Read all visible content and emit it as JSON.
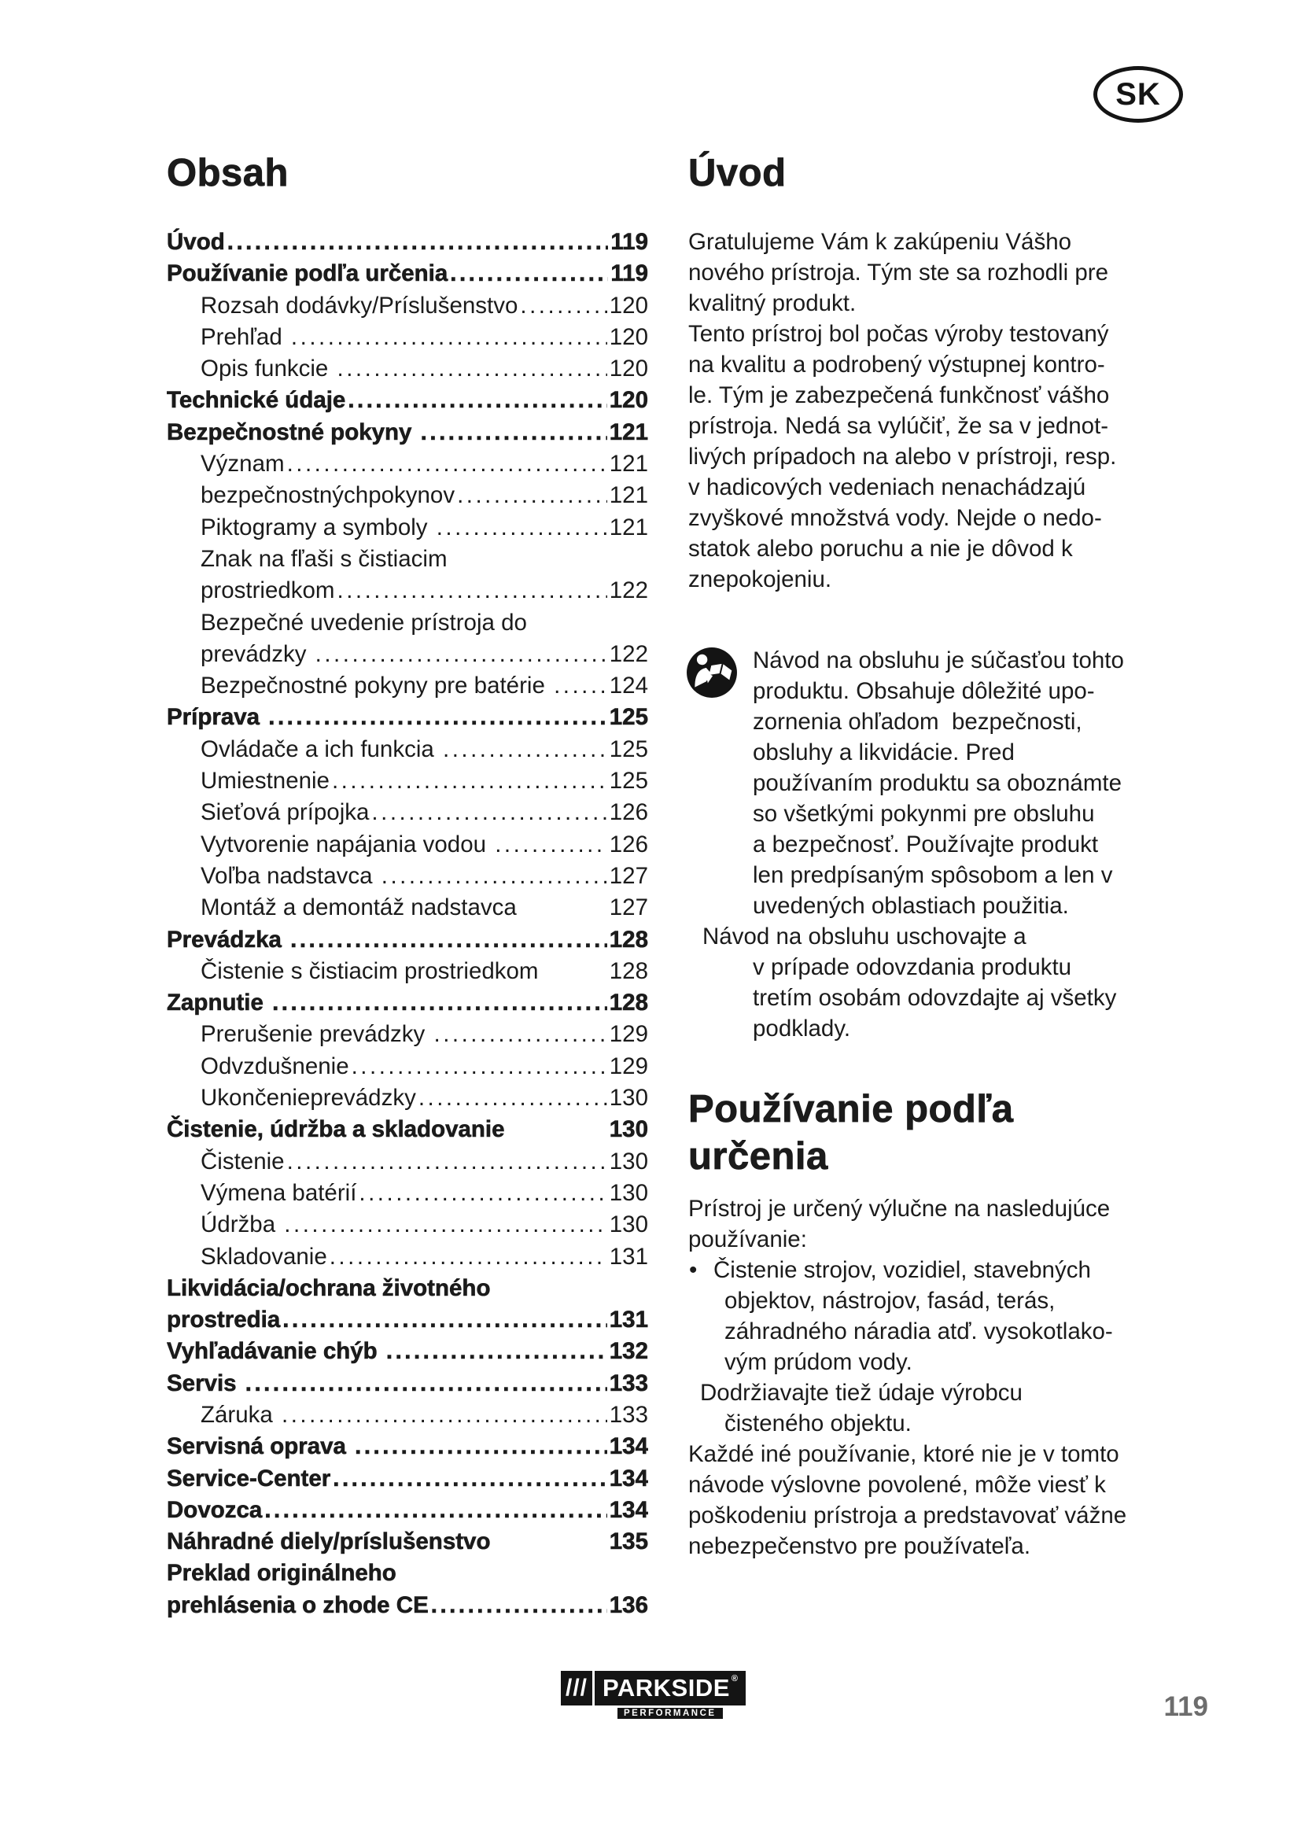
{
  "page": {
    "number": "119",
    "country_badge": "SK"
  },
  "colors": {
    "text": "#1b1b1b",
    "page_number_gray": "#6d6d6d",
    "logo_black": "#141414"
  },
  "toc": {
    "heading": "Obsah",
    "rows": [
      {
        "label": "Úvod",
        "page": "119",
        "bold": true,
        "indent": 0
      },
      {
        "label": "Používanie podľa určenia",
        "page": "119",
        "bold": true,
        "indent": 0
      },
      {
        "label": "Rozsah dodávky/Príslušenstvo",
        "page": "120",
        "bold": false,
        "indent": 1
      },
      {
        "label": "Prehľad ",
        "page": "120",
        "bold": false,
        "indent": 1
      },
      {
        "label": "Opis funkcie ",
        "page": "120",
        "bold": false,
        "indent": 1
      },
      {
        "label": "Technické údaje",
        "page": "120",
        "bold": true,
        "indent": 0
      },
      {
        "label": "Bezpečnostné pokyny ",
        "page": "121",
        "bold": true,
        "indent": 0
      },
      {
        "label": "Význam",
        "page": "121",
        "bold": false,
        "indent": 1
      },
      {
        "label": "bezpečnostnýchpokynov",
        "page": "121",
        "bold": false,
        "indent": 1
      },
      {
        "label": "Piktogramy a symboly ",
        "page": "121",
        "bold": false,
        "indent": 1
      },
      {
        "label": "Znak na fľaši s čistiacim",
        "page": "",
        "bold": false,
        "indent": 1
      },
      {
        "label": "prostriedkom",
        "page": "122",
        "bold": false,
        "indent": 1
      },
      {
        "label": "Bezpečné uvedenie prístroja do",
        "page": "",
        "bold": false,
        "indent": 1
      },
      {
        "label": "prevádzky ",
        "page": "122",
        "bold": false,
        "indent": 1
      },
      {
        "label": "Bezpečnostné pokyny pre batérie ",
        "page": "124",
        "bold": false,
        "indent": 1
      },
      {
        "label": "Príprava ",
        "page": "125",
        "bold": true,
        "indent": 0
      },
      {
        "label": "Ovládače a ich funkcia ",
        "page": "125",
        "bold": false,
        "indent": 1
      },
      {
        "label": "Umiestnenie",
        "page": "125",
        "bold": false,
        "indent": 1
      },
      {
        "label": "Sieťová prípojka",
        "page": "126",
        "bold": false,
        "indent": 1
      },
      {
        "label": "Vytvorenie napájania vodou ",
        "page": "126",
        "bold": false,
        "indent": 1
      },
      {
        "label": "Voľba nadstavca ",
        "page": "127",
        "bold": false,
        "indent": 1
      },
      {
        "label": "Montáž a demontáž nadstavca ",
        "page": "127",
        "bold": false,
        "indent": 1,
        "dots": false
      },
      {
        "label": "Prevádzka ",
        "page": "128",
        "bold": true,
        "indent": 0
      },
      {
        "label": "Čistenie s čistiacim prostriedkom ",
        "page": "128",
        "bold": false,
        "indent": 1,
        "dots": false
      },
      {
        "label": "Zapnutie ",
        "page": "128",
        "bold": true,
        "indent": 0
      },
      {
        "label": "Prerušenie prevádzky ",
        "page": "129",
        "bold": false,
        "indent": 1
      },
      {
        "label": "Odvzdušnenie",
        "page": "129",
        "bold": false,
        "indent": 1
      },
      {
        "label": "Ukončenieprevádzky",
        "page": "130",
        "bold": false,
        "indent": 1
      },
      {
        "label": "Čistenie, údržba a skladovanie ",
        "page": "130",
        "bold": true,
        "indent": 0,
        "dots": false
      },
      {
        "label": "Čistenie",
        "page": "130",
        "bold": false,
        "indent": 1
      },
      {
        "label": "Výmena batérií",
        "page": "130",
        "bold": false,
        "indent": 1
      },
      {
        "label": "Údržba ",
        "page": "130",
        "bold": false,
        "indent": 1
      },
      {
        "label": "Skladovanie",
        "page": "131",
        "bold": false,
        "indent": 1
      },
      {
        "label": "Likvidácia/ochrana životného",
        "page": "",
        "bold": true,
        "indent": 0
      },
      {
        "label": "prostredia",
        "page": "131",
        "bold": true,
        "indent": 0
      },
      {
        "label": "Vyhľadávanie chýb ",
        "page": "132",
        "bold": true,
        "indent": 0
      },
      {
        "label": "Servis ",
        "page": "133",
        "bold": true,
        "indent": 0
      },
      {
        "label": "Záruka ",
        "page": "133",
        "bold": false,
        "indent": 1
      },
      {
        "label": "Servisná oprava ",
        "page": "134",
        "bold": true,
        "indent": 0
      },
      {
        "label": "Service-Center",
        "page": "134",
        "bold": true,
        "indent": 0
      },
      {
        "label": "Dovozca",
        "page": "134",
        "bold": true,
        "indent": 0
      },
      {
        "label": "Náhradné diely/príslušenstvo ",
        "page": "135",
        "bold": true,
        "indent": 0,
        "dots": false
      },
      {
        "label": "Preklad originálneho",
        "page": "",
        "bold": true,
        "indent": 0
      },
      {
        "label": "prehlásenia o zhode CE",
        "page": "136",
        "bold": true,
        "indent": 0
      }
    ]
  },
  "intro": {
    "heading": "Úvod",
    "paragraph1_lines": [
      "Gratulujeme Vám k zakúpeniu Vášho",
      "nového prístroja. Tým ste sa rozhodli pre",
      "kvalitný produkt.",
      "Tento prístroj bol počas výroby testovaný",
      "na kvalitu a podrobený výstupnej kontro-",
      "le. Tým je zabezpečená funkčnosť vášho",
      "prístroja. Nedá sa vylúčiť, že sa v jednot-",
      "livých prípadoch na alebo v prístroji, resp.",
      "v hadicových vedeniach nenachádzajú",
      "zvyškové množstvá vody. Nejde o nedo-",
      "statok alebo poruchu a nie je dôvod k",
      "znepokojeniu."
    ],
    "note": {
      "icon": "read-manual-icon",
      "lines": [
        {
          "text": "Návod na obsluhu je súčasťou tohto",
          "indent": 82
        },
        {
          "text": "produktu. Obsahuje dôležité upo-",
          "indent": 82
        },
        {
          "text": "zornenia ohľadom  bezpečnosti,",
          "indent": 82
        },
        {
          "text": "obsluhy a likvidácie. Pred",
          "indent": 82
        },
        {
          "text": "používaním produktu sa oboznámte",
          "indent": 82
        },
        {
          "text": "so všetkými pokynmi pre obsluhu",
          "indent": 82
        },
        {
          "text": "a bezpečnosť. Používajte produkt",
          "indent": 82
        },
        {
          "text": "len predpísaným spôsobom a len v",
          "indent": 82
        },
        {
          "text": "uvedených oblastiach použitia.",
          "indent": 82
        },
        {
          "text": "Návod na obsluhu uschovajte a",
          "indent": 18
        },
        {
          "text": "v prípade odovzdania produktu",
          "indent": 82
        },
        {
          "text": "tretím osobám odovzdajte aj všetky",
          "indent": 82
        },
        {
          "text": "podklady.",
          "indent": 82
        }
      ]
    }
  },
  "usage": {
    "heading_lines": [
      "Používanie podľa",
      "určenia"
    ],
    "lines": [
      {
        "text": "Prístroj je určený výlučne na nasledujúce",
        "indent": 0
      },
      {
        "text": "používanie:",
        "indent": 0
      },
      {
        "text": "Čistenie strojov, vozidiel, stavebných",
        "indent": 32,
        "bullet": true
      },
      {
        "text": "objektov, nástrojov, fasád, terás,",
        "indent": 46
      },
      {
        "text": "záhradného náradia atď. vysokotlako-",
        "indent": 46
      },
      {
        "text": "vým prúdom vody.",
        "indent": 46
      },
      {
        "text": "Dodržiavajte tiež údaje výrobcu",
        "indent": 15
      },
      {
        "text": "čisteného objektu.",
        "indent": 46
      },
      {
        "text": "Každé iné používanie, ktoré nie je v tomto",
        "indent": 0
      },
      {
        "text": "návode výslovne povolené, môže viesť k",
        "indent": 0
      },
      {
        "text": "poškodeniu prístroja a predstavovať vážne",
        "indent": 0
      },
      {
        "text": "nebezpečenstvo pre používateľa.",
        "indent": 0
      }
    ]
  },
  "logo": {
    "slashes": "///",
    "brand": "PARKSIDE",
    "registered": "®",
    "sub": "PERFORMANCE"
  }
}
